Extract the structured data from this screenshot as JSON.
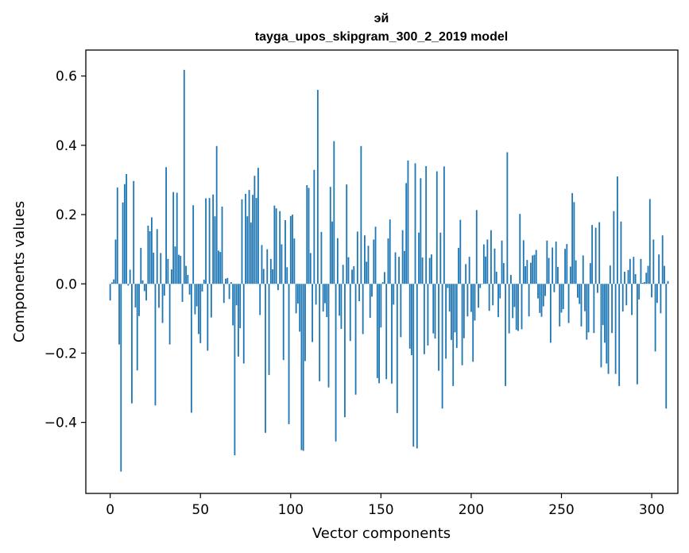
{
  "chart_data": {
    "type": "bar",
    "title": "эй",
    "subtitle": "tayga_upos_skipgram_300_2_2019 model",
    "xlabel": "Vector components",
    "ylabel": "Components values",
    "xlim": [
      -13.5,
      314.5
    ],
    "ylim": [
      -0.605,
      0.675
    ],
    "xticks": [
      0,
      50,
      100,
      150,
      200,
      250,
      300
    ],
    "xtick_labels": [
      "0",
      "50",
      "100",
      "150",
      "200",
      "250",
      "300"
    ],
    "yticks": [
      -0.4,
      -0.2,
      0.0,
      0.2,
      0.4,
      0.6
    ],
    "ytick_labels": [
      "−0.4",
      "−0.2",
      "0.0",
      "0.2",
      "0.4",
      "0.6"
    ],
    "bar_color": "#1f77b4",
    "values": [
      -0.048,
      0.004,
      0.013,
      0.128,
      0.278,
      -0.175,
      -0.542,
      0.235,
      0.288,
      0.317,
      -0.005,
      0.041,
      -0.345,
      0.297,
      -0.068,
      -0.25,
      -0.093,
      0.104,
      0.01,
      -0.021,
      -0.048,
      0.168,
      0.152,
      0.192,
      0.09,
      -0.351,
      0.158,
      -0.069,
      0.089,
      -0.113,
      -0.034,
      0.337,
      0.072,
      -0.175,
      0.042,
      0.265,
      0.108,
      0.263,
      0.084,
      0.081,
      -0.052,
      0.618,
      0.052,
      0.026,
      -0.031,
      -0.372,
      0.227,
      -0.088,
      -0.065,
      -0.145,
      -0.171,
      -0.022,
      0.012,
      0.247,
      -0.193,
      0.248,
      -0.097,
      0.258,
      0.195,
      0.398,
      0.096,
      0.092,
      0.223,
      -0.055,
      0.015,
      0.017,
      -0.044,
      0.005,
      -0.12,
      -0.495,
      -0.062,
      -0.21,
      -0.128,
      0.244,
      -0.23,
      0.26,
      0.195,
      0.271,
      0.177,
      0.257,
      0.312,
      0.248,
      0.335,
      -0.09,
      0.112,
      0.043,
      -0.43,
      0.1,
      -0.263,
      0.072,
      0.042,
      0.226,
      0.218,
      -0.018,
      0.21,
      0.114,
      -0.22,
      0.184,
      0.048,
      -0.405,
      0.196,
      0.2,
      0.131,
      -0.085,
      -0.057,
      -0.138,
      -0.48,
      -0.482,
      -0.223,
      0.285,
      0.277,
      0.089,
      -0.168,
      0.329,
      -0.06,
      0.56,
      -0.281,
      0.15,
      -0.08,
      -0.056,
      -0.096,
      -0.299,
      0.28,
      0.18,
      0.412,
      -0.455,
      0.132,
      -0.092,
      -0.13,
      0.055,
      -0.385,
      0.287,
      0.077,
      -0.165,
      0.041,
      0.051,
      -0.32,
      0.151,
      -0.05,
      0.398,
      -0.145,
      0.14,
      0.064,
      0.11,
      -0.098,
      -0.037,
      0.128,
      0.165,
      -0.272,
      -0.287,
      -0.126,
      0.005,
      0.034,
      -0.275,
      0.131,
      0.186,
      -0.288,
      -0.06,
      0.091,
      -0.373,
      0.078,
      -0.154,
      0.155,
      0.095,
      0.291,
      0.356,
      -0.187,
      -0.206,
      -0.47,
      0.348,
      -0.475,
      0.148,
      0.305,
      0.076,
      -0.203,
      0.34,
      -0.178,
      0.075,
      0.085,
      -0.143,
      -0.158,
      0.325,
      -0.251,
      0.148,
      -0.36,
      0.339,
      -0.216,
      -0.012,
      -0.08,
      -0.162,
      -0.295,
      -0.14,
      -0.185,
      0.104,
      0.185,
      -0.235,
      -0.157,
      0.057,
      -0.094,
      0.078,
      -0.081,
      -0.225,
      -0.106,
      0.213,
      -0.069,
      -0.012,
      0.0,
      0.114,
      0.079,
      0.128,
      -0.078,
      0.155,
      -0.062,
      0.102,
      0.035,
      -0.096,
      -0.042,
      0.125,
      0.06,
      -0.295,
      0.38,
      -0.143,
      0.026,
      -0.099,
      -0.067,
      -0.133,
      -0.136,
      0.202,
      -0.131,
      0.126,
      0.051,
      0.069,
      -0.094,
      0.061,
      0.082,
      0.084,
      0.098,
      -0.042,
      -0.084,
      -0.095,
      -0.065,
      -0.035,
      0.125,
      0.075,
      -0.17,
      0.105,
      -0.024,
      0.122,
      0.049,
      -0.123,
      -0.083,
      -0.073,
      0.101,
      0.115,
      -0.113,
      0.05,
      0.262,
      0.236,
      0.068,
      -0.04,
      -0.058,
      -0.123,
      0.082,
      -0.079,
      -0.161,
      -0.14,
      0.06,
      0.17,
      -0.142,
      0.162,
      -0.026,
      0.178,
      -0.241,
      -0.119,
      -0.17,
      -0.23,
      -0.26,
      0.053,
      -0.142,
      0.21,
      -0.26,
      0.31,
      -0.295,
      0.18,
      -0.08,
      0.035,
      -0.062,
      0.04,
      0.072,
      -0.09,
      0.078,
      0.028,
      -0.29,
      -0.045,
      0.072,
      0.003,
      0.005,
      0.032,
      0.052,
      0.245,
      -0.039,
      0.128,
      -0.195,
      -0.055,
      0.085,
      -0.085,
      0.14,
      0.052,
      -0.36,
      0.008
    ]
  }
}
